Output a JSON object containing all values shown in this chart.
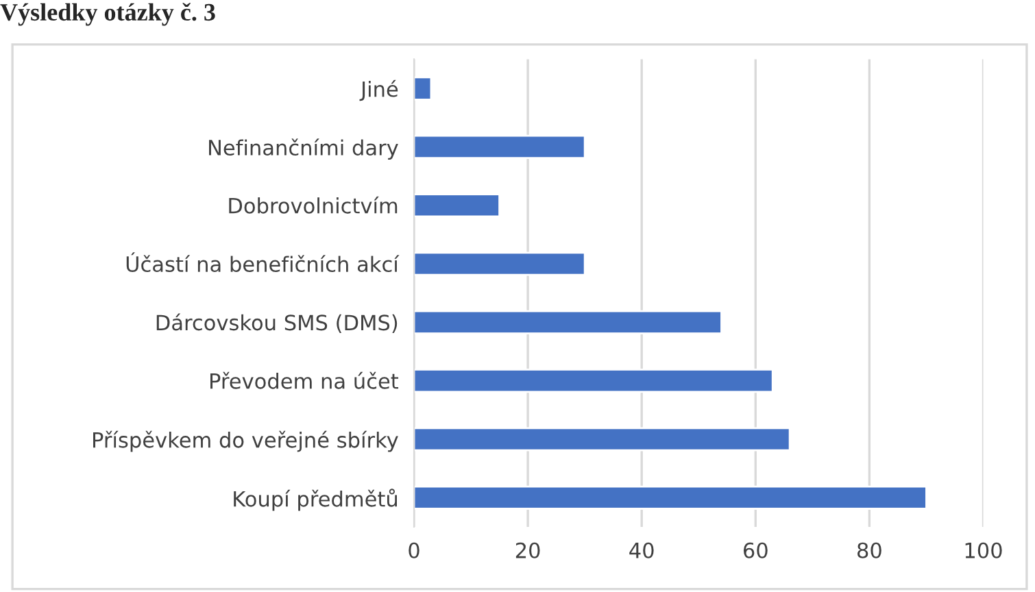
{
  "chart_data": {
    "type": "bar",
    "orientation": "horizontal",
    "title": "Výsledky otázky č. 3",
    "categories": [
      "Jiné",
      "Nefinančními dary",
      "Dobrovolnictvím",
      "Účastí na benefičních akcí",
      "Dárcovskou SMS (DMS)",
      "Převodem na účet",
      "Příspěvkem do veřejné sbírky",
      "Koupí předmětů"
    ],
    "values": [
      3,
      30,
      15,
      30,
      54,
      63,
      66,
      90
    ],
    "color": "#4472c4",
    "xlim": [
      0,
      100
    ],
    "xticks": [
      0,
      20,
      40,
      60,
      80,
      100
    ],
    "grid": "x",
    "legend": false
  }
}
